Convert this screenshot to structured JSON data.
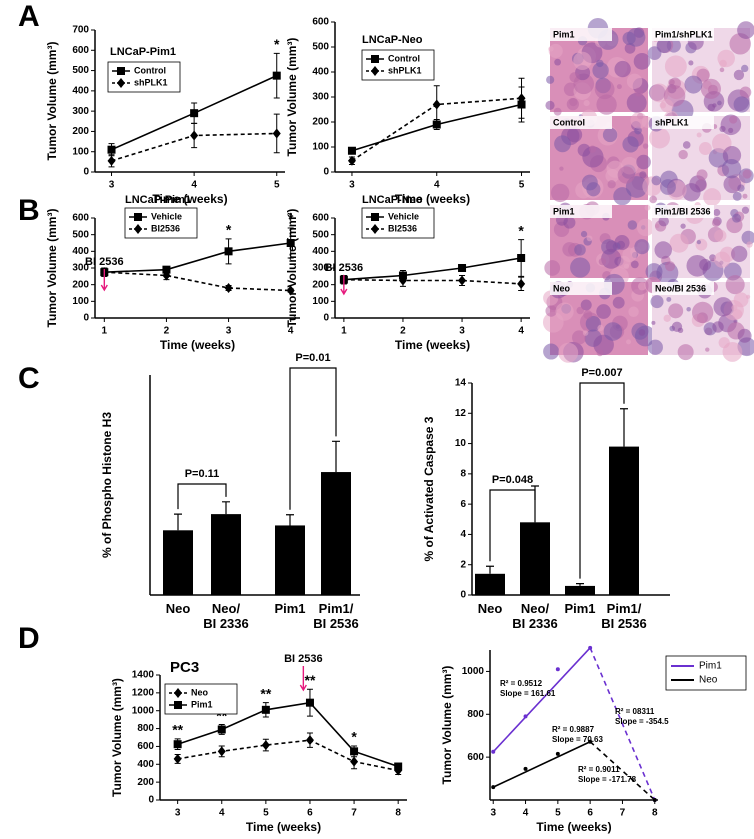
{
  "panel_labels": [
    "A",
    "B",
    "C",
    "D"
  ],
  "images": [
    {
      "labels": [
        "Pim1",
        "Pim1/shPLK1",
        "Control",
        "shPLK1"
      ]
    },
    {
      "labels": [
        "Pim1",
        "Pim1/BI 2536",
        "Neo",
        "Neo/BI 2536"
      ]
    }
  ],
  "chart_data": [
    {
      "type": "line",
      "title": "LNCaP-Pim1",
      "xlabel": "Time (weeks)",
      "ylabel": "Tumor Volume (mm³)",
      "x": [
        3,
        4,
        5
      ],
      "xlim": [
        2.8,
        5.1
      ],
      "xticks": [
        3,
        4,
        5
      ],
      "ylim": [
        0,
        700
      ],
      "yticks": [
        0,
        100,
        200,
        300,
        400,
        500,
        600,
        700
      ],
      "legend_loc": "upper left",
      "series": [
        {
          "name": "Control",
          "color": "#000000",
          "dash": false,
          "marker": "square",
          "values": [
            110,
            290,
            475
          ],
          "errors": [
            30,
            50,
            110
          ]
        },
        {
          "name": "shPLK1",
          "color": "#000000",
          "dash": true,
          "marker": "diamond",
          "values": [
            55,
            180,
            190
          ],
          "errors": [
            30,
            60,
            95
          ]
        }
      ],
      "significance": [
        null,
        null,
        "*"
      ]
    },
    {
      "type": "line",
      "title": "LNCaP-Neo",
      "xlabel": "Time (weeks)",
      "ylabel": "Tumor Volume (mm³)",
      "x": [
        3,
        4,
        5
      ],
      "xlim": [
        2.8,
        5.1
      ],
      "xticks": [
        3,
        4,
        5
      ],
      "ylim": [
        0,
        600
      ],
      "yticks": [
        0,
        100,
        200,
        300,
        400,
        500,
        600
      ],
      "legend_loc": "upper left",
      "series": [
        {
          "name": "Control",
          "color": "#000000",
          "dash": false,
          "marker": "square",
          "values": [
            85,
            190,
            270
          ],
          "errors": [
            10,
            20,
            70
          ]
        },
        {
          "name": "shPLK1",
          "color": "#000000",
          "dash": true,
          "marker": "diamond",
          "values": [
            45,
            270,
            295
          ],
          "errors": [
            15,
            75,
            80
          ]
        }
      ]
    },
    {
      "type": "line",
      "title": "LNCaP-Pim1",
      "xlabel": "Time (weeks)",
      "ylabel": "Tumor Volume (mm³)",
      "x": [
        1,
        2,
        3,
        4
      ],
      "xlim": [
        0.85,
        4.15
      ],
      "xticks": [
        1,
        2,
        3,
        4
      ],
      "ylim": [
        0,
        600
      ],
      "yticks": [
        0,
        100,
        200,
        300,
        400,
        500,
        600
      ],
      "legend_loc": "upper left",
      "series": [
        {
          "name": "Vehicle",
          "color": "#000000",
          "dash": false,
          "marker": "square",
          "values": [
            275,
            290,
            400,
            450
          ],
          "errors": [
            25,
            15,
            75,
            90
          ]
        },
        {
          "name": "BI2536",
          "color": "#000000",
          "dash": true,
          "marker": "diamond",
          "values": [
            275,
            255,
            180,
            165
          ],
          "errors": [
            25,
            25,
            15,
            10
          ]
        }
      ],
      "significance": [
        null,
        null,
        "*",
        "*"
      ],
      "arrow": {
        "text": "BI 2536",
        "x": 1,
        "color": "#e6197d"
      }
    },
    {
      "type": "line",
      "title": "LNCaP-Neo",
      "xlabel": "Time (weeks)",
      "ylabel": "Tumor Volume (mm³)",
      "x": [
        1,
        2,
        3,
        4
      ],
      "xlim": [
        0.85,
        4.15
      ],
      "xticks": [
        1,
        2,
        3,
        4
      ],
      "ylim": [
        0,
        600
      ],
      "yticks": [
        0,
        100,
        200,
        300,
        400,
        500,
        600
      ],
      "legend_loc": "upper left",
      "series": [
        {
          "name": "Vehicle",
          "color": "#000000",
          "dash": false,
          "marker": "square",
          "values": [
            230,
            255,
            300,
            360
          ],
          "errors": [
            25,
            30,
            20,
            110
          ]
        },
        {
          "name": "BI2536",
          "color": "#000000",
          "dash": true,
          "marker": "diamond",
          "values": [
            230,
            225,
            225,
            205
          ],
          "errors": [
            25,
            35,
            30,
            40
          ]
        }
      ],
      "significance": [
        null,
        null,
        null,
        "*"
      ],
      "arrow": {
        "text": "BI 2536",
        "x": 1,
        "color": "#e6197d"
      }
    },
    {
      "type": "bar",
      "ylabel": "% of Phospho Histone H3",
      "categories": [
        "Neo",
        "Neo/\nBI 2336",
        "Pim1",
        "Pim1/\nBI 2536"
      ],
      "values": [
        20,
        25,
        21.5,
        38
      ],
      "errors": [
        5,
        3.8,
        3.3,
        9.5
      ],
      "color": "#000000",
      "ylim": [
        0,
        68
      ],
      "brackets": [
        {
          "text": "P=0.11",
          "between": [
            0,
            1
          ]
        },
        {
          "text": "P=0.01",
          "between": [
            2,
            3
          ]
        }
      ]
    },
    {
      "type": "bar",
      "ylabel": "% of Activated Caspase 3",
      "categories": [
        "Neo",
        "Neo/\nBI 2336",
        "Pim1",
        "Pim1/\nBI 2536"
      ],
      "values": [
        1.4,
        4.8,
        0.6,
        9.8
      ],
      "errors": [
        0.5,
        2.4,
        0.15,
        2.5
      ],
      "color": "#000000",
      "ylim": [
        0,
        14
      ],
      "yticks": [
        0,
        2,
        4,
        6,
        8,
        10,
        12,
        14
      ],
      "brackets": [
        {
          "text": "P=0.048",
          "between": [
            0,
            1
          ]
        },
        {
          "text": "P=0.007",
          "between": [
            2,
            3
          ]
        }
      ]
    },
    {
      "type": "line",
      "title": "PC3",
      "xlabel": "Time (weeks)",
      "ylabel": "Tumor Volume (mm³)",
      "x": [
        3,
        4,
        5,
        6,
        7,
        8
      ],
      "xlim": [
        2.6,
        8.2
      ],
      "xticks": [
        3,
        4,
        5,
        6,
        7,
        8
      ],
      "ylim": [
        0,
        1400
      ],
      "yticks": [
        0,
        200,
        400,
        600,
        800,
        1000,
        1200,
        1400
      ],
      "legend_loc": "upper left",
      "series": [
        {
          "name": "Neo",
          "color": "#000000",
          "dash": true,
          "marker": "diamond",
          "values": [
            460,
            545,
            615,
            670,
            430,
            330
          ],
          "errors": [
            50,
            60,
            65,
            80,
            80,
            45
          ]
        },
        {
          "name": "Pim1",
          "color": "#000000",
          "dash": false,
          "marker": "square",
          "values": [
            625,
            790,
            1010,
            1090,
            545,
            375
          ],
          "errors": [
            60,
            55,
            80,
            150,
            60,
            30
          ]
        }
      ],
      "significance": [
        "**",
        "**",
        "**",
        "**",
        "*",
        null
      ],
      "arrow": {
        "text": "BI 2536",
        "x": 5.85,
        "color": "#e6197d"
      }
    },
    {
      "type": "fit",
      "xlabel": "Time (weeks)",
      "ylabel": "Tumor Volume (mm³)",
      "x": [
        3,
        4,
        5,
        6,
        8
      ],
      "xlim": [
        2.9,
        8.1
      ],
      "xticks": [
        3,
        4,
        5,
        6,
        7,
        8
      ],
      "ylim": [
        400,
        1100
      ],
      "yticks": [
        600,
        800,
        1000
      ],
      "legend_loc": "right",
      "series": [
        {
          "name": "Pim1",
          "color": "#6a30d0",
          "values": [
            625,
            790,
            1010,
            1110,
            400
          ]
        },
        {
          "name": "Neo",
          "color": "#000000",
          "values": [
            460,
            545,
            615,
            672,
            400
          ]
        }
      ],
      "fits": [
        {
          "color": "#6a30d0",
          "dash": false,
          "x": [
            3,
            6
          ],
          "values": [
            625,
            1110
          ],
          "labels": [
            "R² = 0.9512",
            "Slope = 161.61"
          ]
        },
        {
          "color": "#6a30d0",
          "dash": true,
          "x": [
            6,
            8
          ],
          "values": [
            1110,
            400
          ],
          "labels": [
            "R² = 08311",
            "Slope = -354.5"
          ]
        },
        {
          "color": "#000000",
          "dash": false,
          "x": [
            3,
            6
          ],
          "values": [
            460,
            672
          ],
          "labels": [
            "R² = 0.9887",
            "Slope = 70.63"
          ]
        },
        {
          "color": "#000000",
          "dash": true,
          "x": [
            6,
            8
          ],
          "values": [
            672,
            400
          ],
          "labels": [
            "R² = 0.9011",
            "Slope = -171.78"
          ]
        }
      ]
    }
  ]
}
